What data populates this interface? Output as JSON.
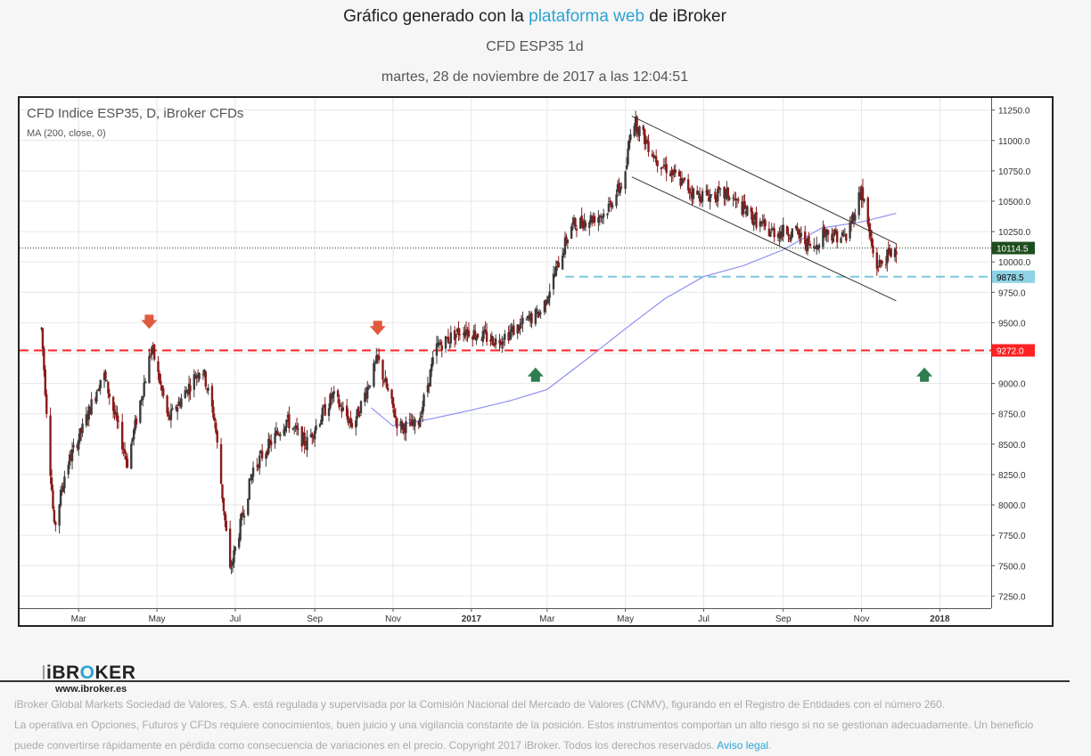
{
  "header": {
    "title_pre": "Gráfico generado con la ",
    "title_link": "plataforma web",
    "title_post": " de iBroker",
    "subtitle": "CFD ESP35 1d",
    "datetime": "martes, 28 de noviembre de 2017 a las 12:04:51"
  },
  "chart_legend": {
    "instrument": "CFD Indice ESP35, D, iBroker CFDs",
    "indicator": "MA (200, close, 0)"
  },
  "logo": {
    "brand_pre": "iBR",
    "brand_o": "O",
    "brand_post": "KER",
    "url": "www.ibroker.es"
  },
  "chart_data": {
    "type": "candlestick",
    "y_axis": {
      "ticks": [
        11250,
        11000,
        10750,
        10500,
        10250,
        10000,
        9750,
        9500,
        9250,
        9000,
        8750,
        8500,
        8250,
        8000,
        7750,
        7500,
        7250
      ],
      "range": [
        7150,
        11350
      ]
    },
    "x_axis": {
      "labels": [
        "Mar",
        "May",
        "Jul",
        "Sep",
        "Nov",
        "2017",
        "Mar",
        "May",
        "Jul",
        "Sep",
        "Nov",
        "2018"
      ],
      "bold": [
        "2017",
        "2018"
      ]
    },
    "price_labels": [
      {
        "value": 10114.5,
        "text": "10114.5",
        "color": "#1e4d1e"
      },
      {
        "value": 9878.5,
        "text": "9878.5",
        "color": "#8fd2e4"
      },
      {
        "value": 9272.0,
        "text": "9272.0",
        "color": "#ff2222"
      }
    ],
    "horizontal_lines": [
      {
        "value": 10114.5,
        "style": "dotted",
        "color": "#1e4d1e"
      },
      {
        "value": 9878.5,
        "style": "dashed",
        "color": "#7cc8dd"
      },
      {
        "value": 9272.0,
        "style": "dashed",
        "color": "#ff2222"
      }
    ],
    "price_path": [
      [
        "2016-02-01",
        9450
      ],
      [
        "2016-02-11",
        7800
      ],
      [
        "2016-02-20",
        8300
      ],
      [
        "2016-03-05",
        8650
      ],
      [
        "2016-03-20",
        9100
      ],
      [
        "2016-04-08",
        8350
      ],
      [
        "2016-04-27",
        9300
      ],
      [
        "2016-05-10",
        8700
      ],
      [
        "2016-06-05",
        9150
      ],
      [
        "2016-06-15",
        8700
      ],
      [
        "2016-06-27",
        7450
      ],
      [
        "2016-07-15",
        8300
      ],
      [
        "2016-08-10",
        8700
      ],
      [
        "2016-08-25",
        8500
      ],
      [
        "2016-09-15",
        8900
      ],
      [
        "2016-10-01",
        8650
      ],
      [
        "2016-10-20",
        9200
      ],
      [
        "2016-11-05",
        8650
      ],
      [
        "2016-11-20",
        8650
      ],
      [
        "2016-12-05",
        9300
      ],
      [
        "2016-12-25",
        9450
      ],
      [
        "2017-01-20",
        9350
      ],
      [
        "2017-02-05",
        9450
      ],
      [
        "2017-02-25",
        9600
      ],
      [
        "2017-03-20",
        10300
      ],
      [
        "2017-04-15",
        10400
      ],
      [
        "2017-05-01",
        10700
      ],
      [
        "2017-05-06",
        11200
      ],
      [
        "2017-05-25",
        10850
      ],
      [
        "2017-06-25",
        10550
      ],
      [
        "2017-07-20",
        10550
      ],
      [
        "2017-08-20",
        10250
      ],
      [
        "2017-09-10",
        10250
      ],
      [
        "2017-09-25",
        10100
      ],
      [
        "2017-10-02",
        10250
      ],
      [
        "2017-10-20",
        10200
      ],
      [
        "2017-11-01",
        10600
      ],
      [
        "2017-11-12",
        9950
      ],
      [
        "2017-11-28",
        10114.5
      ]
    ],
    "ma200": [
      [
        "2016-10-15",
        8800
      ],
      [
        "2016-11-01",
        8650
      ],
      [
        "2016-12-01",
        8710
      ],
      [
        "2017-01-01",
        8780
      ],
      [
        "2017-02-01",
        8860
      ],
      [
        "2017-03-01",
        8950
      ],
      [
        "2017-04-01",
        9200
      ],
      [
        "2017-05-01",
        9450
      ],
      [
        "2017-06-01",
        9700
      ],
      [
        "2017-07-01",
        9880
      ],
      [
        "2017-08-01",
        9970
      ],
      [
        "2017-09-01",
        10100
      ],
      [
        "2017-10-01",
        10280
      ],
      [
        "2017-11-01",
        10330
      ],
      [
        "2017-11-28",
        10400
      ]
    ],
    "trend_lines": [
      {
        "from": [
          "2017-05-06",
          11200
        ],
        "to": [
          "2017-11-28",
          10150
        ]
      },
      {
        "from": [
          "2017-05-06",
          10700
        ],
        "to": [
          "2017-11-28",
          9680
        ]
      }
    ],
    "arrows": [
      {
        "date": "2016-04-25",
        "value": 9500,
        "dir": "down",
        "color": "#e05a3f"
      },
      {
        "date": "2016-10-20",
        "value": 9450,
        "dir": "down",
        "color": "#e05a3f"
      },
      {
        "date": "2017-02-20",
        "value": 9080,
        "dir": "up",
        "color": "#2e7d4f"
      },
      {
        "date": "2017-12-20",
        "value": 9080,
        "dir": "up",
        "color": "#2e7d4f"
      }
    ],
    "colors": {
      "up": "#3b3b3b",
      "down": "#8b1a1a",
      "ma": "#8f8ff0"
    }
  },
  "footer": {
    "line1": "iBroker Global Markets Sociedad de Valores, S.A. está regulada y supervisada por la Comisión Nacional del Mercado de Valores (CNMV), figurando en el Registro de Entidades con el número 260.",
    "line2": "La operativa en Opciones, Futuros y CFDs requiere conocimientos, buen juicio y una vigilancia constante de la posición. Estos instrumentos comportan un alto riesgo si no se gestionan adecuadamente. Un beneficio puede convertirse rápidamente en pérdida como consecuencia de variaciones en el precio. Copyright 2017 iBroker. Todos los derechos reservados. ",
    "link": "Aviso legal",
    "end": "."
  }
}
